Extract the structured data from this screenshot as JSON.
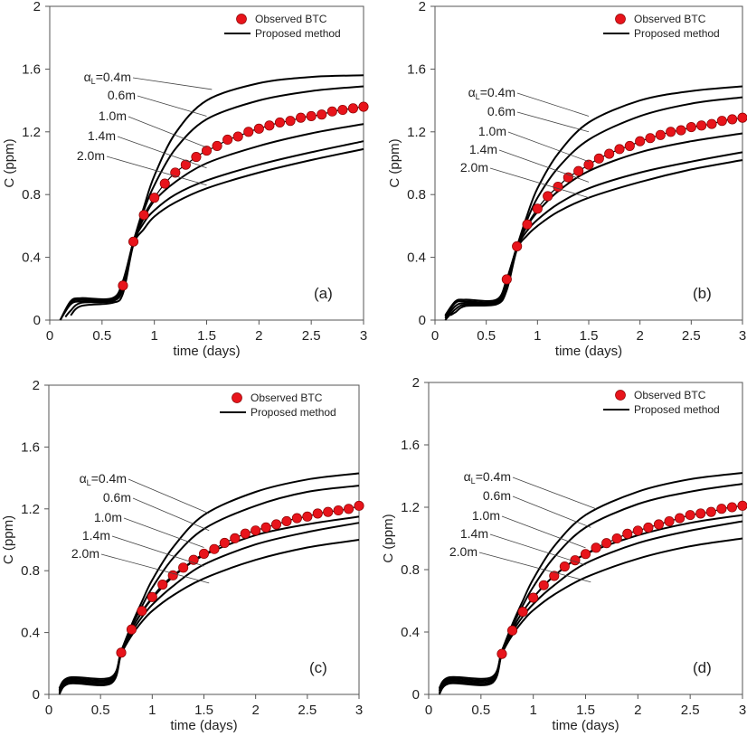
{
  "figure": {
    "panels": [
      "a",
      "b",
      "c",
      "d"
    ]
  },
  "chart_data": [
    {
      "type": "line",
      "panel_label": "(a)",
      "xlabel": "time (days)",
      "ylabel": "C (ppm)",
      "xlim": [
        0,
        3
      ],
      "ylim": [
        0,
        2
      ],
      "xticks": [
        "0",
        "0.5",
        "1",
        "1.5",
        "2",
        "2.5",
        "3"
      ],
      "yticks": [
        "0",
        "0.4",
        "0.8",
        "1.2",
        "1.6",
        "2"
      ],
      "legend": {
        "position": "top-right",
        "entries": [
          "Observed BTC",
          "Proposed method"
        ]
      },
      "annotations": [
        "αL=0.4m",
        "0.6m",
        "1.0m",
        "1.4m",
        "2.0m"
      ],
      "observed": {
        "name": "Observed BTC",
        "x": [
          0.7,
          0.8,
          0.9,
          1.0,
          1.1,
          1.2,
          1.3,
          1.4,
          1.5,
          1.6,
          1.7,
          1.8,
          1.9,
          2.0,
          2.1,
          2.2,
          2.3,
          2.4,
          2.5,
          2.6,
          2.7,
          2.8,
          2.9,
          3.0
        ],
        "y": [
          0.22,
          0.5,
          0.67,
          0.78,
          0.87,
          0.94,
          0.99,
          1.04,
          1.08,
          1.11,
          1.15,
          1.17,
          1.2,
          1.22,
          1.24,
          1.26,
          1.27,
          1.29,
          1.3,
          1.31,
          1.33,
          1.34,
          1.35,
          1.36
        ]
      },
      "series": [
        {
          "name": "αL=0.4m",
          "x": [
            0.1,
            0.2,
            0.3,
            0.6,
            0.7,
            0.8,
            0.9,
            1.0,
            1.2,
            1.5,
            2.0,
            2.5,
            3.0
          ],
          "y": [
            0.0,
            0.12,
            0.14,
            0.14,
            0.25,
            0.5,
            0.72,
            0.92,
            1.19,
            1.4,
            1.51,
            1.55,
            1.56
          ]
        },
        {
          "name": "αL=0.6m",
          "x": [
            0.1,
            0.2,
            0.3,
            0.6,
            0.7,
            0.8,
            0.9,
            1.0,
            1.2,
            1.5,
            2.0,
            2.5,
            3.0
          ],
          "y": [
            0.0,
            0.11,
            0.13,
            0.13,
            0.24,
            0.5,
            0.7,
            0.86,
            1.09,
            1.28,
            1.4,
            1.46,
            1.49
          ]
        },
        {
          "name": "αL=1.0m",
          "x": [
            0.1,
            0.2,
            0.3,
            0.6,
            0.7,
            0.8,
            0.9,
            1.0,
            1.2,
            1.5,
            2.0,
            2.5,
            3.0
          ],
          "y": [
            0.0,
            0.1,
            0.12,
            0.13,
            0.22,
            0.5,
            0.65,
            0.76,
            0.88,
            1.0,
            1.11,
            1.19,
            1.25
          ]
        },
        {
          "name": "αL=1.4m",
          "x": [
            0.15,
            0.2,
            0.3,
            0.6,
            0.7,
            0.8,
            0.9,
            1.0,
            1.2,
            1.5,
            2.0,
            2.5,
            3.0
          ],
          "y": [
            0.02,
            0.06,
            0.11,
            0.12,
            0.2,
            0.49,
            0.62,
            0.7,
            0.8,
            0.89,
            0.99,
            1.07,
            1.14
          ]
        },
        {
          "name": "αL=2.0m",
          "x": [
            0.2,
            0.3,
            0.6,
            0.7,
            0.8,
            0.9,
            1.0,
            1.2,
            1.5,
            2.0,
            2.5,
            3.0
          ],
          "y": [
            0.03,
            0.09,
            0.11,
            0.17,
            0.48,
            0.58,
            0.66,
            0.75,
            0.84,
            0.94,
            1.02,
            1.09
          ]
        }
      ]
    },
    {
      "type": "line",
      "panel_label": "(b)",
      "xlabel": "time (days)",
      "ylabel": "C (ppm)",
      "xlim": [
        0,
        3
      ],
      "ylim": [
        0,
        2
      ],
      "xticks": [
        "0",
        "0.5",
        "1",
        "1.5",
        "2",
        "2.5",
        "3"
      ],
      "yticks": [
        "0",
        "0.4",
        "0.8",
        "1.2",
        "1.6",
        "2"
      ],
      "legend": {
        "position": "top-right",
        "entries": [
          "Observed BTC",
          "Proposed method"
        ]
      },
      "annotations": [
        "αL=0.4m",
        "0.6m",
        "1.0m",
        "1.4m",
        "2.0m"
      ],
      "observed": {
        "name": "Observed BTC",
        "x": [
          0.7,
          0.8,
          0.9,
          1.0,
          1.1,
          1.2,
          1.3,
          1.4,
          1.5,
          1.6,
          1.7,
          1.8,
          1.9,
          2.0,
          2.1,
          2.2,
          2.3,
          2.4,
          2.5,
          2.6,
          2.7,
          2.8,
          2.9,
          3.0
        ],
        "y": [
          0.26,
          0.47,
          0.61,
          0.71,
          0.79,
          0.85,
          0.91,
          0.95,
          0.99,
          1.03,
          1.06,
          1.09,
          1.11,
          1.14,
          1.16,
          1.18,
          1.2,
          1.21,
          1.23,
          1.24,
          1.25,
          1.27,
          1.28,
          1.29
        ]
      },
      "series": [
        {
          "name": "αL=0.4m",
          "x": [
            0.1,
            0.2,
            0.3,
            0.6,
            0.7,
            0.8,
            0.9,
            1.0,
            1.2,
            1.5,
            2.0,
            2.5,
            3.0
          ],
          "y": [
            0.03,
            0.12,
            0.13,
            0.13,
            0.26,
            0.47,
            0.67,
            0.84,
            1.06,
            1.26,
            1.4,
            1.46,
            1.49
          ]
        },
        {
          "name": "αL=0.6m",
          "x": [
            0.1,
            0.2,
            0.3,
            0.6,
            0.7,
            0.8,
            0.9,
            1.0,
            1.2,
            1.5,
            2.0,
            2.5,
            3.0
          ],
          "y": [
            0.02,
            0.11,
            0.12,
            0.12,
            0.25,
            0.47,
            0.64,
            0.78,
            0.97,
            1.15,
            1.3,
            1.38,
            1.42
          ]
        },
        {
          "name": "αL=1.0m",
          "x": [
            0.1,
            0.2,
            0.3,
            0.6,
            0.7,
            0.8,
            0.9,
            1.0,
            1.2,
            1.5,
            2.0,
            2.5,
            3.0
          ],
          "y": [
            0.01,
            0.09,
            0.11,
            0.12,
            0.23,
            0.47,
            0.6,
            0.69,
            0.82,
            0.95,
            1.07,
            1.14,
            1.19
          ]
        },
        {
          "name": "αL=1.4m",
          "x": [
            0.1,
            0.2,
            0.3,
            0.6,
            0.7,
            0.8,
            0.9,
            1.0,
            1.2,
            1.5,
            2.0,
            2.5,
            3.0
          ],
          "y": [
            0.0,
            0.07,
            0.1,
            0.11,
            0.21,
            0.46,
            0.57,
            0.64,
            0.74,
            0.84,
            0.94,
            1.01,
            1.07
          ]
        },
        {
          "name": "αL=2.0m",
          "x": [
            0.15,
            0.2,
            0.3,
            0.6,
            0.7,
            0.8,
            0.9,
            1.0,
            1.2,
            1.5,
            2.0,
            2.5,
            3.0
          ],
          "y": [
            0.03,
            0.05,
            0.09,
            0.1,
            0.19,
            0.45,
            0.54,
            0.6,
            0.69,
            0.78,
            0.88,
            0.96,
            1.02
          ]
        }
      ]
    },
    {
      "type": "line",
      "panel_label": "(c)",
      "xlabel": "time (days)",
      "ylabel": "C (ppm)",
      "xlim": [
        0,
        3
      ],
      "ylim": [
        0,
        2
      ],
      "xticks": [
        "0",
        "0.5",
        "1",
        "1.5",
        "2",
        "2.5",
        "3"
      ],
      "yticks": [
        "0",
        "0.4",
        "0.8",
        "1.2",
        "1.6",
        "2"
      ],
      "legend": {
        "position": "top-right",
        "entries": [
          "Observed BTC",
          "Proposed method"
        ]
      },
      "annotations": [
        "αL=0.4m",
        "0.6m",
        "1.0m",
        "1.4m",
        "2.0m"
      ],
      "observed": {
        "name": "Observed BTC",
        "x": [
          0.7,
          0.8,
          0.9,
          1.0,
          1.1,
          1.2,
          1.3,
          1.4,
          1.5,
          1.6,
          1.7,
          1.8,
          1.9,
          2.0,
          2.1,
          2.2,
          2.3,
          2.4,
          2.5,
          2.6,
          2.7,
          2.8,
          2.9,
          3.0
        ],
        "y": [
          0.27,
          0.42,
          0.54,
          0.63,
          0.71,
          0.77,
          0.82,
          0.87,
          0.91,
          0.94,
          0.98,
          1.01,
          1.04,
          1.06,
          1.08,
          1.1,
          1.12,
          1.14,
          1.15,
          1.17,
          1.18,
          1.19,
          1.2,
          1.22
        ]
      },
      "series": [
        {
          "name": "αL=0.4m",
          "x": [
            0.1,
            0.2,
            0.6,
            0.7,
            0.8,
            0.9,
            1.0,
            1.2,
            1.5,
            2.0,
            2.5,
            3.0
          ],
          "y": [
            0.04,
            0.11,
            0.11,
            0.28,
            0.45,
            0.6,
            0.74,
            0.95,
            1.16,
            1.31,
            1.39,
            1.43
          ]
        },
        {
          "name": "αL=0.6m",
          "x": [
            0.1,
            0.2,
            0.6,
            0.7,
            0.8,
            0.9,
            1.0,
            1.2,
            1.5,
            2.0,
            2.5,
            3.0
          ],
          "y": [
            0.03,
            0.1,
            0.1,
            0.28,
            0.44,
            0.57,
            0.69,
            0.88,
            1.07,
            1.22,
            1.31,
            1.35
          ]
        },
        {
          "name": "αL=1.0m",
          "x": [
            0.1,
            0.2,
            0.6,
            0.7,
            0.8,
            0.9,
            1.0,
            1.2,
            1.5,
            2.0,
            2.5,
            3.0
          ],
          "y": [
            0.02,
            0.09,
            0.09,
            0.27,
            0.42,
            0.53,
            0.62,
            0.76,
            0.9,
            1.03,
            1.1,
            1.15
          ]
        },
        {
          "name": "αL=1.4m",
          "x": [
            0.1,
            0.2,
            0.6,
            0.7,
            0.8,
            0.9,
            1.0,
            1.2,
            1.5,
            2.0,
            2.5,
            3.0
          ],
          "y": [
            0.01,
            0.08,
            0.08,
            0.27,
            0.4,
            0.5,
            0.58,
            0.7,
            0.84,
            0.97,
            1.05,
            1.11
          ]
        },
        {
          "name": "αL=2.0m",
          "x": [
            0.1,
            0.2,
            0.6,
            0.7,
            0.8,
            0.9,
            1.0,
            1.2,
            1.5,
            2.0,
            2.5,
            3.0
          ],
          "y": [
            0.0,
            0.07,
            0.07,
            0.26,
            0.38,
            0.47,
            0.54,
            0.64,
            0.75,
            0.87,
            0.95,
            1.0
          ]
        }
      ]
    },
    {
      "type": "line",
      "panel_label": "(d)",
      "xlabel": "time (days)",
      "ylabel": "C (ppm)",
      "xlim": [
        0,
        3
      ],
      "ylim": [
        0,
        2
      ],
      "xticks": [
        "0",
        "0.5",
        "1",
        "1.5",
        "2",
        "2.5",
        "3"
      ],
      "yticks": [
        "0",
        "0.4",
        "0.8",
        "1.2",
        "1.6",
        "2"
      ],
      "legend": {
        "position": "top-right",
        "entries": [
          "Observed BTC",
          "Proposed method"
        ]
      },
      "annotations": [
        "αL=0.4m",
        "0.6m",
        "1.0m",
        "1.4m",
        "2.0m"
      ],
      "observed": {
        "name": "Observed BTC",
        "x": [
          0.7,
          0.8,
          0.9,
          1.0,
          1.1,
          1.2,
          1.3,
          1.4,
          1.5,
          1.6,
          1.7,
          1.8,
          1.9,
          2.0,
          2.1,
          2.2,
          2.3,
          2.4,
          2.5,
          2.6,
          2.7,
          2.8,
          2.9,
          3.0
        ],
        "y": [
          0.26,
          0.41,
          0.53,
          0.62,
          0.7,
          0.76,
          0.82,
          0.86,
          0.9,
          0.94,
          0.97,
          1.0,
          1.03,
          1.05,
          1.07,
          1.09,
          1.11,
          1.13,
          1.15,
          1.16,
          1.17,
          1.19,
          1.2,
          1.21
        ]
      },
      "series": [
        {
          "name": "αL=0.4m",
          "x": [
            0.1,
            0.2,
            0.6,
            0.7,
            0.8,
            0.9,
            1.0,
            1.2,
            1.5,
            2.0,
            2.5,
            3.0
          ],
          "y": [
            0.04,
            0.11,
            0.11,
            0.28,
            0.45,
            0.6,
            0.74,
            0.95,
            1.15,
            1.3,
            1.38,
            1.42
          ]
        },
        {
          "name": "αL=0.6m",
          "x": [
            0.1,
            0.2,
            0.6,
            0.7,
            0.8,
            0.9,
            1.0,
            1.2,
            1.5,
            2.0,
            2.5,
            3.0
          ],
          "y": [
            0.03,
            0.1,
            0.1,
            0.28,
            0.44,
            0.57,
            0.69,
            0.88,
            1.07,
            1.22,
            1.3,
            1.35
          ]
        },
        {
          "name": "αL=1.0m",
          "x": [
            0.1,
            0.2,
            0.6,
            0.7,
            0.8,
            0.9,
            1.0,
            1.2,
            1.5,
            2.0,
            2.5,
            3.0
          ],
          "y": [
            0.02,
            0.09,
            0.09,
            0.27,
            0.42,
            0.53,
            0.62,
            0.76,
            0.9,
            1.02,
            1.1,
            1.15
          ]
        },
        {
          "name": "αL=1.4m",
          "x": [
            0.1,
            0.2,
            0.6,
            0.7,
            0.8,
            0.9,
            1.0,
            1.2,
            1.5,
            2.0,
            2.5,
            3.0
          ],
          "y": [
            0.01,
            0.08,
            0.08,
            0.27,
            0.4,
            0.5,
            0.58,
            0.7,
            0.84,
            0.97,
            1.05,
            1.11
          ]
        },
        {
          "name": "αL=2.0m",
          "x": [
            0.1,
            0.2,
            0.6,
            0.7,
            0.8,
            0.9,
            1.0,
            1.2,
            1.5,
            2.0,
            2.5,
            3.0
          ],
          "y": [
            0.0,
            0.07,
            0.07,
            0.26,
            0.38,
            0.47,
            0.54,
            0.64,
            0.75,
            0.87,
            0.95,
            1.0
          ]
        }
      ]
    }
  ],
  "colors": {
    "observed_fill": "#e8141b",
    "observed_stroke": "#8a0000",
    "line": "#000000",
    "axis": "#555555",
    "leader": "#444444"
  }
}
